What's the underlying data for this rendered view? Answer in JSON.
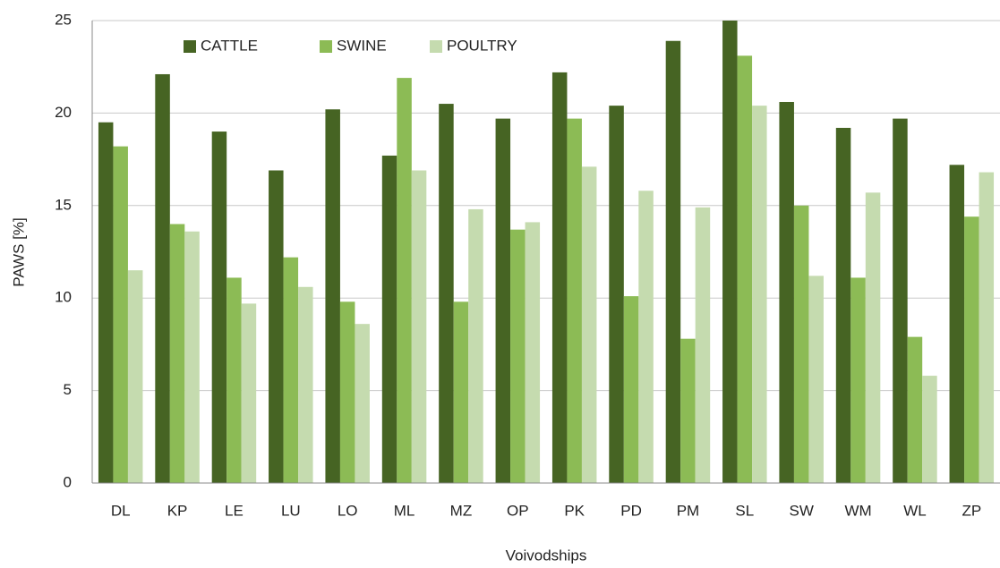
{
  "chart_data": {
    "type": "bar",
    "x_label": "Voivodships",
    "y_label": "PAWS [%]",
    "categories": [
      "DL",
      "KP",
      "LE",
      "LU",
      "LO",
      "ML",
      "MZ",
      "OP",
      "PK",
      "PD",
      "PM",
      "SL",
      "SW",
      "WM",
      "WL",
      "ZP"
    ],
    "series": [
      {
        "name": "CATTLE",
        "color": "#466423",
        "values": [
          19.5,
          22.1,
          19.0,
          16.9,
          20.2,
          17.7,
          20.5,
          19.7,
          22.2,
          20.4,
          23.9,
          25.0,
          20.6,
          19.2,
          19.7,
          17.2
        ]
      },
      {
        "name": "SWINE",
        "color": "#8cbb55",
        "values": [
          18.2,
          14.0,
          11.1,
          12.2,
          9.8,
          21.9,
          9.8,
          13.7,
          19.7,
          10.1,
          7.8,
          23.1,
          15.0,
          11.1,
          7.9,
          14.4
        ]
      },
      {
        "name": "POULTRY",
        "color": "#c5dbaf",
        "values": [
          11.5,
          13.6,
          9.7,
          10.6,
          8.6,
          16.9,
          14.8,
          14.1,
          17.1,
          15.8,
          14.9,
          20.4,
          11.2,
          15.7,
          5.8,
          16.8
        ]
      }
    ],
    "ylim": [
      0,
      25
    ],
    "yticks": [
      0,
      5,
      10,
      15,
      20,
      25
    ],
    "grid": true,
    "legend": "top"
  }
}
